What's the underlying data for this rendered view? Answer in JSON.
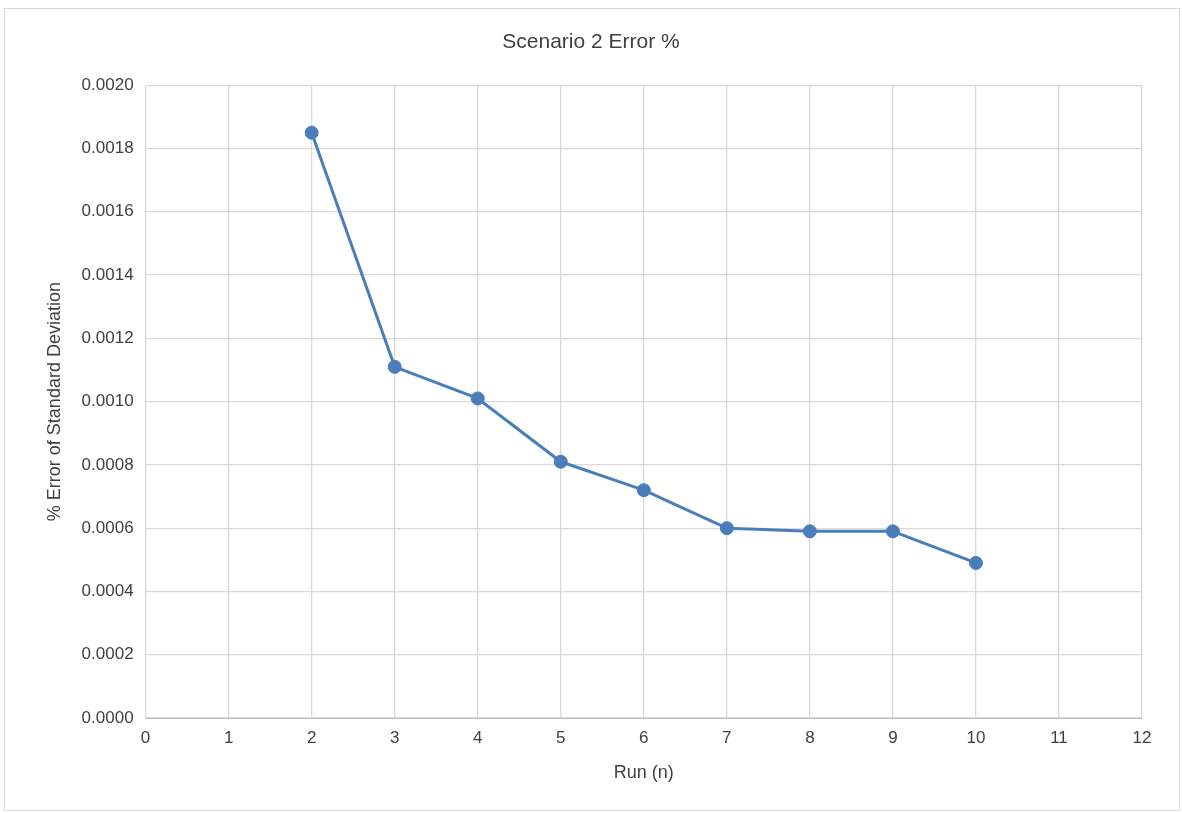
{
  "chart_data": {
    "type": "line",
    "title": "Scenario 2 Error %",
    "xlabel": "Run (n)",
    "ylabel": "% Error of Standard Deviation",
    "x": [
      2,
      3,
      4,
      5,
      6,
      7,
      8,
      9,
      10
    ],
    "series": [
      {
        "color": "#4a7ebb",
        "values": [
          0.00185,
          0.00111,
          0.00101,
          0.00081,
          0.00072,
          0.0006,
          0.00059,
          0.00059,
          0.00049
        ]
      }
    ],
    "xlim": [
      0,
      12
    ],
    "xticks": [
      0,
      1,
      2,
      3,
      4,
      5,
      6,
      7,
      8,
      9,
      10,
      11,
      12
    ],
    "ylim": [
      0,
      0.002
    ],
    "yticks": [
      {
        "value": 0,
        "label": "0.0000"
      },
      {
        "value": 0.0002,
        "label": "0.0002"
      },
      {
        "value": 0.0004,
        "label": "0.0004"
      },
      {
        "value": 0.0006,
        "label": "0.0006"
      },
      {
        "value": 0.0008,
        "label": "0.0008"
      },
      {
        "value": 0.001,
        "label": "0.0010"
      },
      {
        "value": 0.0012,
        "label": "0.0012"
      },
      {
        "value": 0.0014,
        "label": "0.0014"
      },
      {
        "value": 0.0016,
        "label": "0.0016"
      },
      {
        "value": 0.0018,
        "label": "0.0018"
      },
      {
        "value": 0.002,
        "label": "0.0020"
      }
    ],
    "grid": true,
    "marker": "circle"
  }
}
